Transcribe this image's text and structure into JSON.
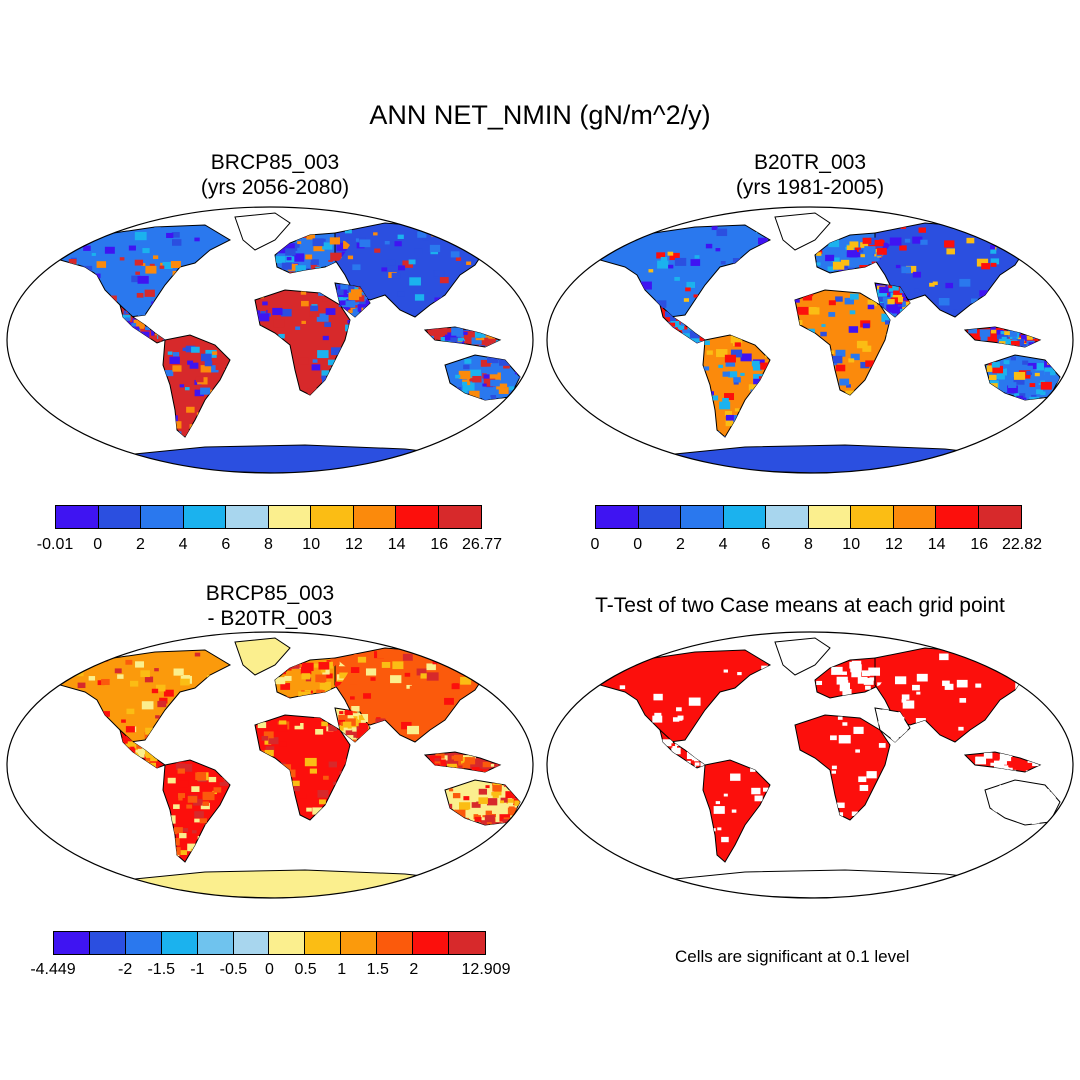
{
  "title": "ANN NET_NMIN (gN/m^2/y)",
  "palette": {
    "neg": [
      "#3f14f2",
      "#2b4fe0",
      "#2a78ee",
      "#1bb2ee",
      "#a8d6ee"
    ],
    "pos": [
      "#fbef8e",
      "#fbbd14",
      "#fb8a0c",
      "#fc0f0c",
      "#d7292b"
    ],
    "diff": [
      "#3f14f2",
      "#2b4fe0",
      "#2a78ee",
      "#1bb2ee",
      "#6fc3ee",
      "#a8d6ee",
      "#fbef8e",
      "#fbbd14",
      "#fb9a0c",
      "#fb5a0c",
      "#fc0f0c",
      "#d7292b"
    ],
    "ttest": "#fc0f0c",
    "ocean": "#ffffff",
    "antarctica_abs": "#2b4fe0",
    "antarctica_diff": "#fbef8e"
  },
  "panels": {
    "top_left": {
      "title": "BRCP85_003",
      "subtitle": "(yrs 2056-2080)",
      "colorbar_labels": [
        "-0.01",
        "0",
        "2",
        "4",
        "6",
        "8",
        "10",
        "12",
        "14",
        "16",
        "26.77"
      ]
    },
    "top_right": {
      "title": "B20TR_003",
      "subtitle": "(yrs 1981-2005)",
      "colorbar_labels": [
        "0",
        "0",
        "2",
        "4",
        "6",
        "8",
        "10",
        "12",
        "14",
        "16",
        "22.82"
      ]
    },
    "bottom_left": {
      "title": "BRCP85_003",
      "subtitle": "- B20TR_003",
      "colorbar_labels": [
        "-4.449",
        "",
        "-2",
        "-1.5",
        "-1",
        "-0.5",
        "0",
        "0.5",
        "1",
        "1.5",
        "2",
        "",
        "12.909"
      ]
    },
    "bottom_right": {
      "title": "T-Test of two Case means at each grid point",
      "note": "Cells are significant at 0.1 level"
    }
  }
}
